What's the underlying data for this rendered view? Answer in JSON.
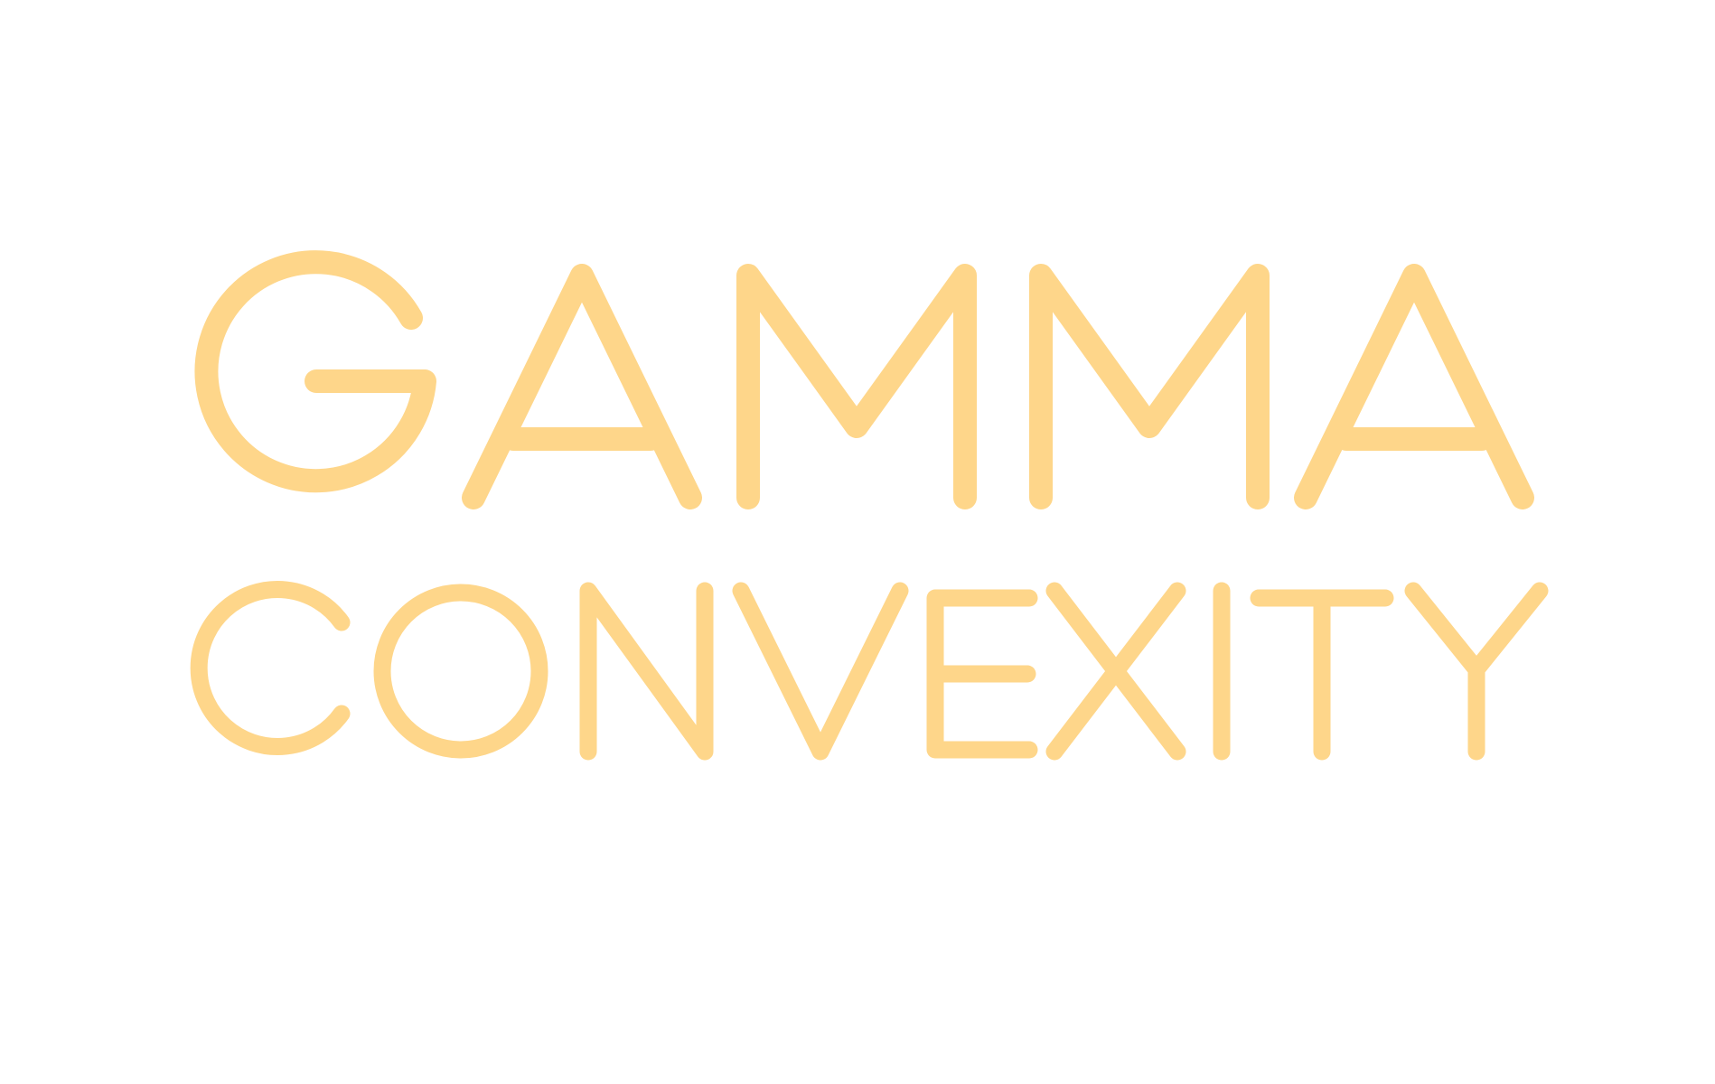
{
  "logo": {
    "line1": "GAMMA",
    "line2": "CONVEXITY",
    "color": "#FED68A"
  },
  "background": "#FFFFFF"
}
